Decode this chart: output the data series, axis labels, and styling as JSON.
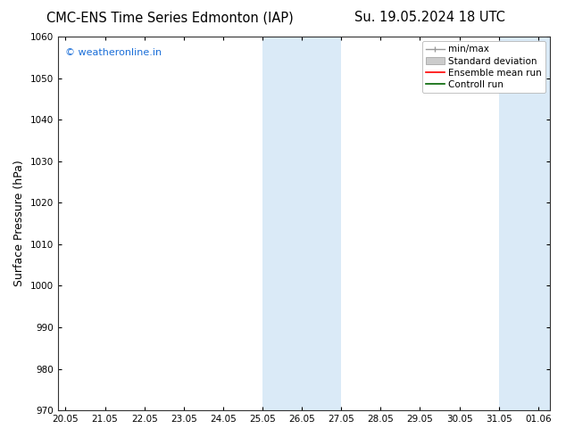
{
  "title_left": "CMC-ENS Time Series Edmonton (IAP)",
  "title_right": "Su. 19.05.2024 18 UTC",
  "ylabel": "Surface Pressure (hPa)",
  "ylim": [
    970,
    1060
  ],
  "yticks": [
    970,
    980,
    990,
    1000,
    1010,
    1020,
    1030,
    1040,
    1050,
    1060
  ],
  "watermark": "© weatheronline.in",
  "watermark_color": "#1a6ed8",
  "background_color": "#ffffff",
  "plot_bg_color": "#ffffff",
  "shaded_bands": [
    {
      "x_start": 25.0,
      "x_end": 27.0,
      "color": "#daeaf7"
    },
    {
      "x_start": 31.0,
      "x_end": 32.5,
      "color": "#daeaf7"
    }
  ],
  "xlim_start": 19.8,
  "xlim_end": 32.3,
  "xtick_labels": [
    "20.05",
    "21.05",
    "22.05",
    "23.05",
    "24.05",
    "25.05",
    "26.05",
    "27.05",
    "28.05",
    "29.05",
    "30.05",
    "31.05",
    "01.06"
  ],
  "xtick_positions": [
    20.0,
    21.0,
    22.0,
    23.0,
    24.0,
    25.0,
    26.0,
    27.0,
    28.0,
    29.0,
    30.0,
    31.0,
    32.0
  ],
  "title_fontsize": 10.5,
  "axis_label_fontsize": 9,
  "tick_fontsize": 7.5,
  "legend_fontsize": 7.5,
  "watermark_fontsize": 8
}
